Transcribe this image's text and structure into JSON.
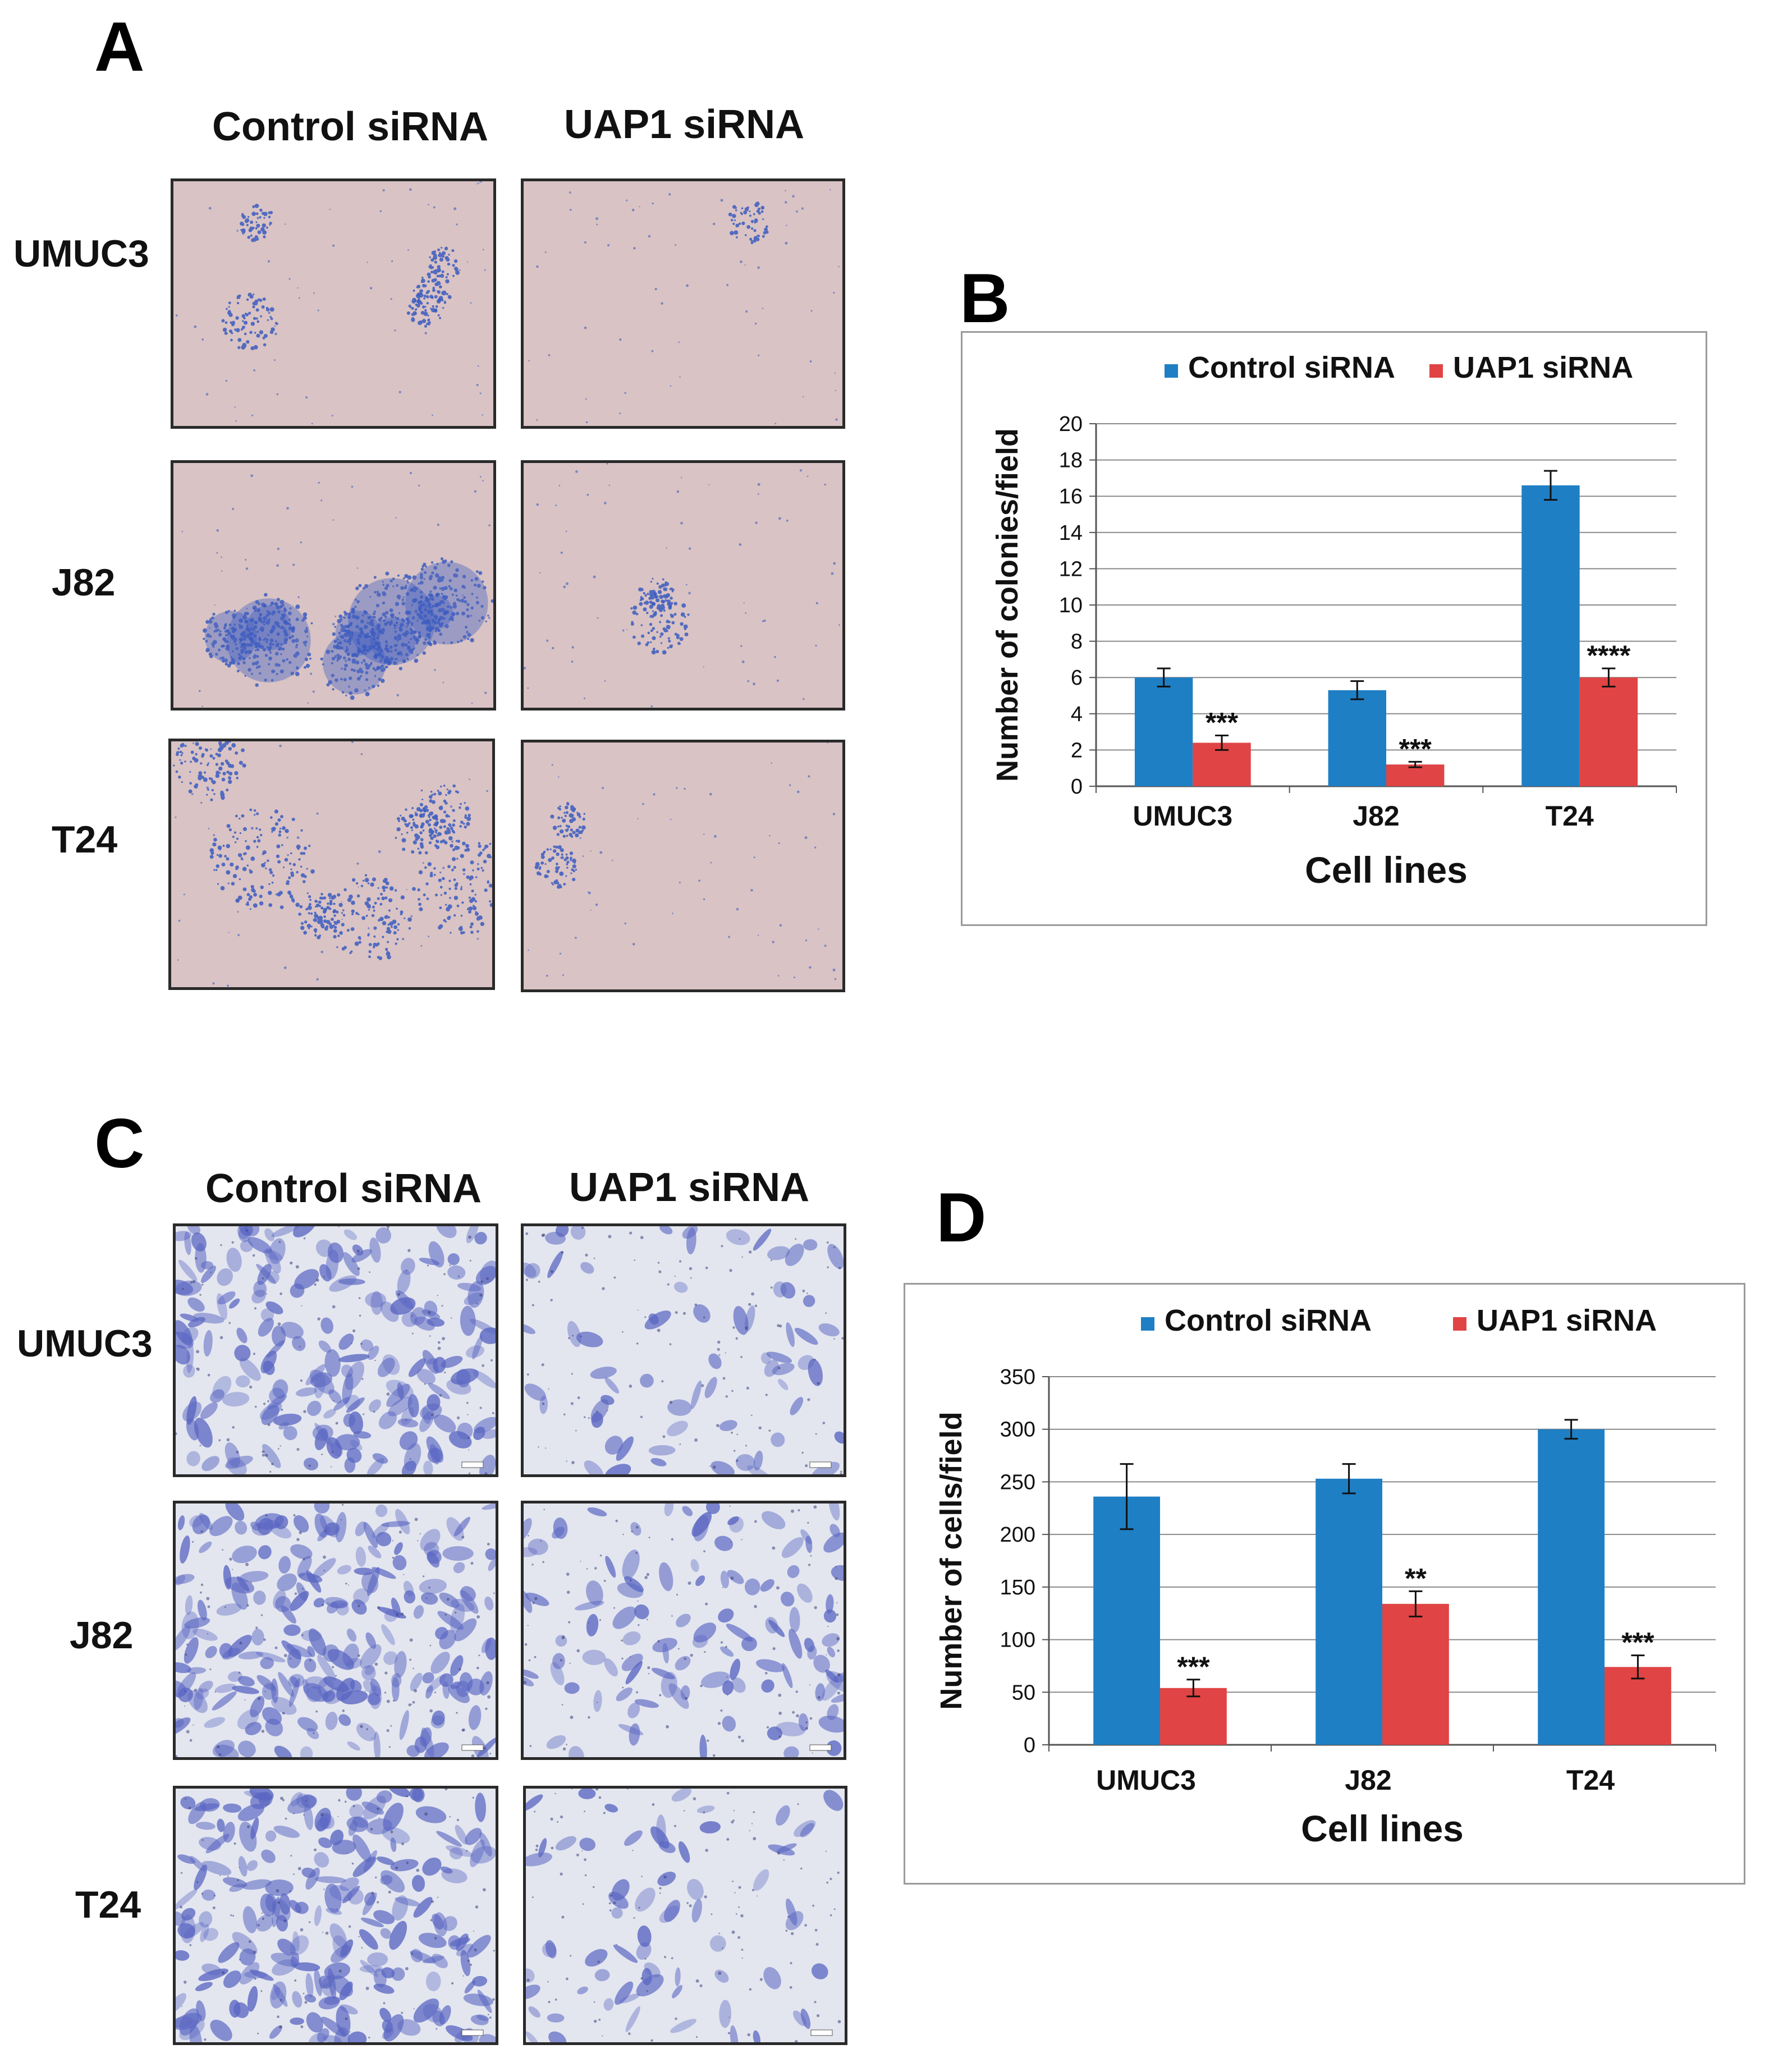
{
  "panels": {
    "a": {
      "letter": "A",
      "col_labels": [
        "Control siRNA",
        "UAP1 siRNA"
      ],
      "row_labels": [
        "UMUC3",
        "J82",
        "T24"
      ]
    },
    "b": {
      "letter": "B"
    },
    "c": {
      "letter": "C",
      "col_labels": [
        "Control siRNA",
        "UAP1 siRNA"
      ],
      "row_labels": [
        "UMUC3",
        "J82",
        "T24"
      ]
    },
    "d": {
      "letter": "D"
    }
  },
  "colors": {
    "control": "#1f7fc4",
    "uap1": "#e04444",
    "colony_bg": "#d9c3c4",
    "colony_stain": "#3b5cc0",
    "invasion_bg": "#e3e6ef",
    "invasion_stain": "#5a66c2"
  },
  "chart_data": [
    {
      "id": "b",
      "type": "bar",
      "categories": [
        "UMUC3",
        "J82",
        "T24"
      ],
      "series": [
        {
          "name": "Control siRNA",
          "values": [
            6.0,
            5.3,
            16.6
          ],
          "errors": [
            0.5,
            0.5,
            0.8
          ],
          "annotations": [
            "",
            "",
            ""
          ]
        },
        {
          "name": "UAP1 siRNA",
          "values": [
            2.4,
            1.2,
            6.0
          ],
          "errors": [
            0.4,
            0.15,
            0.5
          ],
          "annotations": [
            "***",
            "***",
            "****"
          ]
        }
      ],
      "xlabel": "Cell lines",
      "ylabel": "Number of colonies/field",
      "ylim": [
        0,
        20
      ],
      "yticks": [
        0,
        2,
        4,
        6,
        8,
        10,
        12,
        14,
        16,
        18,
        20
      ],
      "grid": true,
      "legend": "top"
    },
    {
      "id": "d",
      "type": "bar",
      "categories": [
        "UMUC3",
        "J82",
        "T24"
      ],
      "series": [
        {
          "name": "Control siRNA",
          "values": [
            236,
            253,
            300
          ],
          "errors": [
            31,
            14,
            9
          ],
          "annotations": [
            "",
            "",
            ""
          ]
        },
        {
          "name": "UAP1 siRNA",
          "values": [
            54,
            134,
            74
          ],
          "errors": [
            8,
            12,
            11
          ],
          "annotations": [
            "***",
            "**",
            "***"
          ]
        }
      ],
      "xlabel": "Cell lines",
      "ylabel": "Number of cells/field",
      "ylim": [
        0,
        350
      ],
      "yticks": [
        0,
        50,
        100,
        150,
        200,
        250,
        300,
        350
      ],
      "grid": true,
      "legend": "top"
    }
  ]
}
